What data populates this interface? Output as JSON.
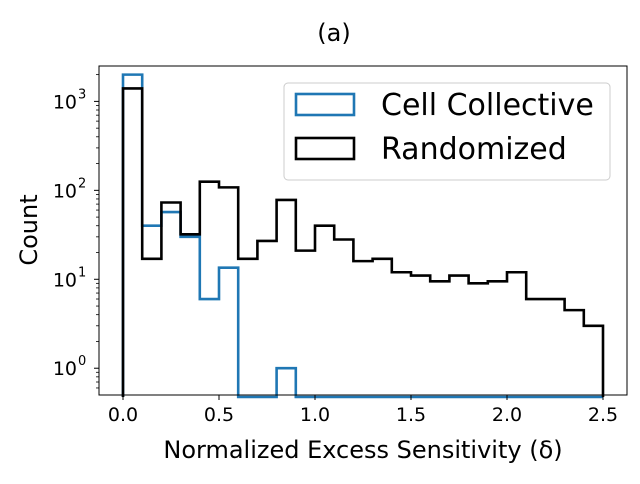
{
  "chart_data": {
    "type": "histogram",
    "title": "(a)",
    "xlabel": "Normalized Excess Sensitivity (δ)",
    "ylabel": "Count",
    "yscale": "log",
    "xlim": [
      -0.125,
      2.625
    ],
    "ylim": [
      0.5,
      2500
    ],
    "xticks": [
      0.0,
      0.5,
      1.0,
      1.5,
      2.0,
      2.5
    ],
    "xtick_labels": [
      "0.0",
      "0.5",
      "1.0",
      "1.5",
      "2.0",
      "2.5"
    ],
    "yticks": [
      1,
      10,
      100,
      1000
    ],
    "ytick_labels": [
      {
        "base": "10",
        "exp": "0"
      },
      {
        "base": "10",
        "exp": "1"
      },
      {
        "base": "10",
        "exp": "2"
      },
      {
        "base": "10",
        "exp": "3"
      }
    ],
    "bin_edges": [
      0.0,
      0.1,
      0.2,
      0.3,
      0.4,
      0.5,
      0.6,
      0.7,
      0.8,
      0.9,
      1.0,
      1.1,
      1.2,
      1.3,
      1.4,
      1.5,
      1.6,
      1.7,
      1.8,
      1.9,
      2.0,
      2.1,
      2.2,
      2.3,
      2.4,
      2.5
    ],
    "grid": false,
    "legend_position": "top-right",
    "series": [
      {
        "name": "Cell Collective",
        "color": "#1f77b4",
        "values": [
          2000,
          40,
          57,
          30,
          6,
          13.5,
          0,
          0,
          1,
          0,
          0,
          0,
          0,
          0,
          0,
          0,
          0,
          0,
          0,
          0,
          0,
          0,
          0,
          0,
          0
        ]
      },
      {
        "name": "Randomized",
        "color": "#000000",
        "values": [
          1400,
          17,
          73,
          32,
          125,
          108,
          17,
          27,
          78,
          21,
          40,
          28,
          16,
          17,
          12,
          11,
          9.5,
          11,
          9,
          9.5,
          12,
          6,
          6,
          4.5,
          3
        ]
      }
    ]
  }
}
